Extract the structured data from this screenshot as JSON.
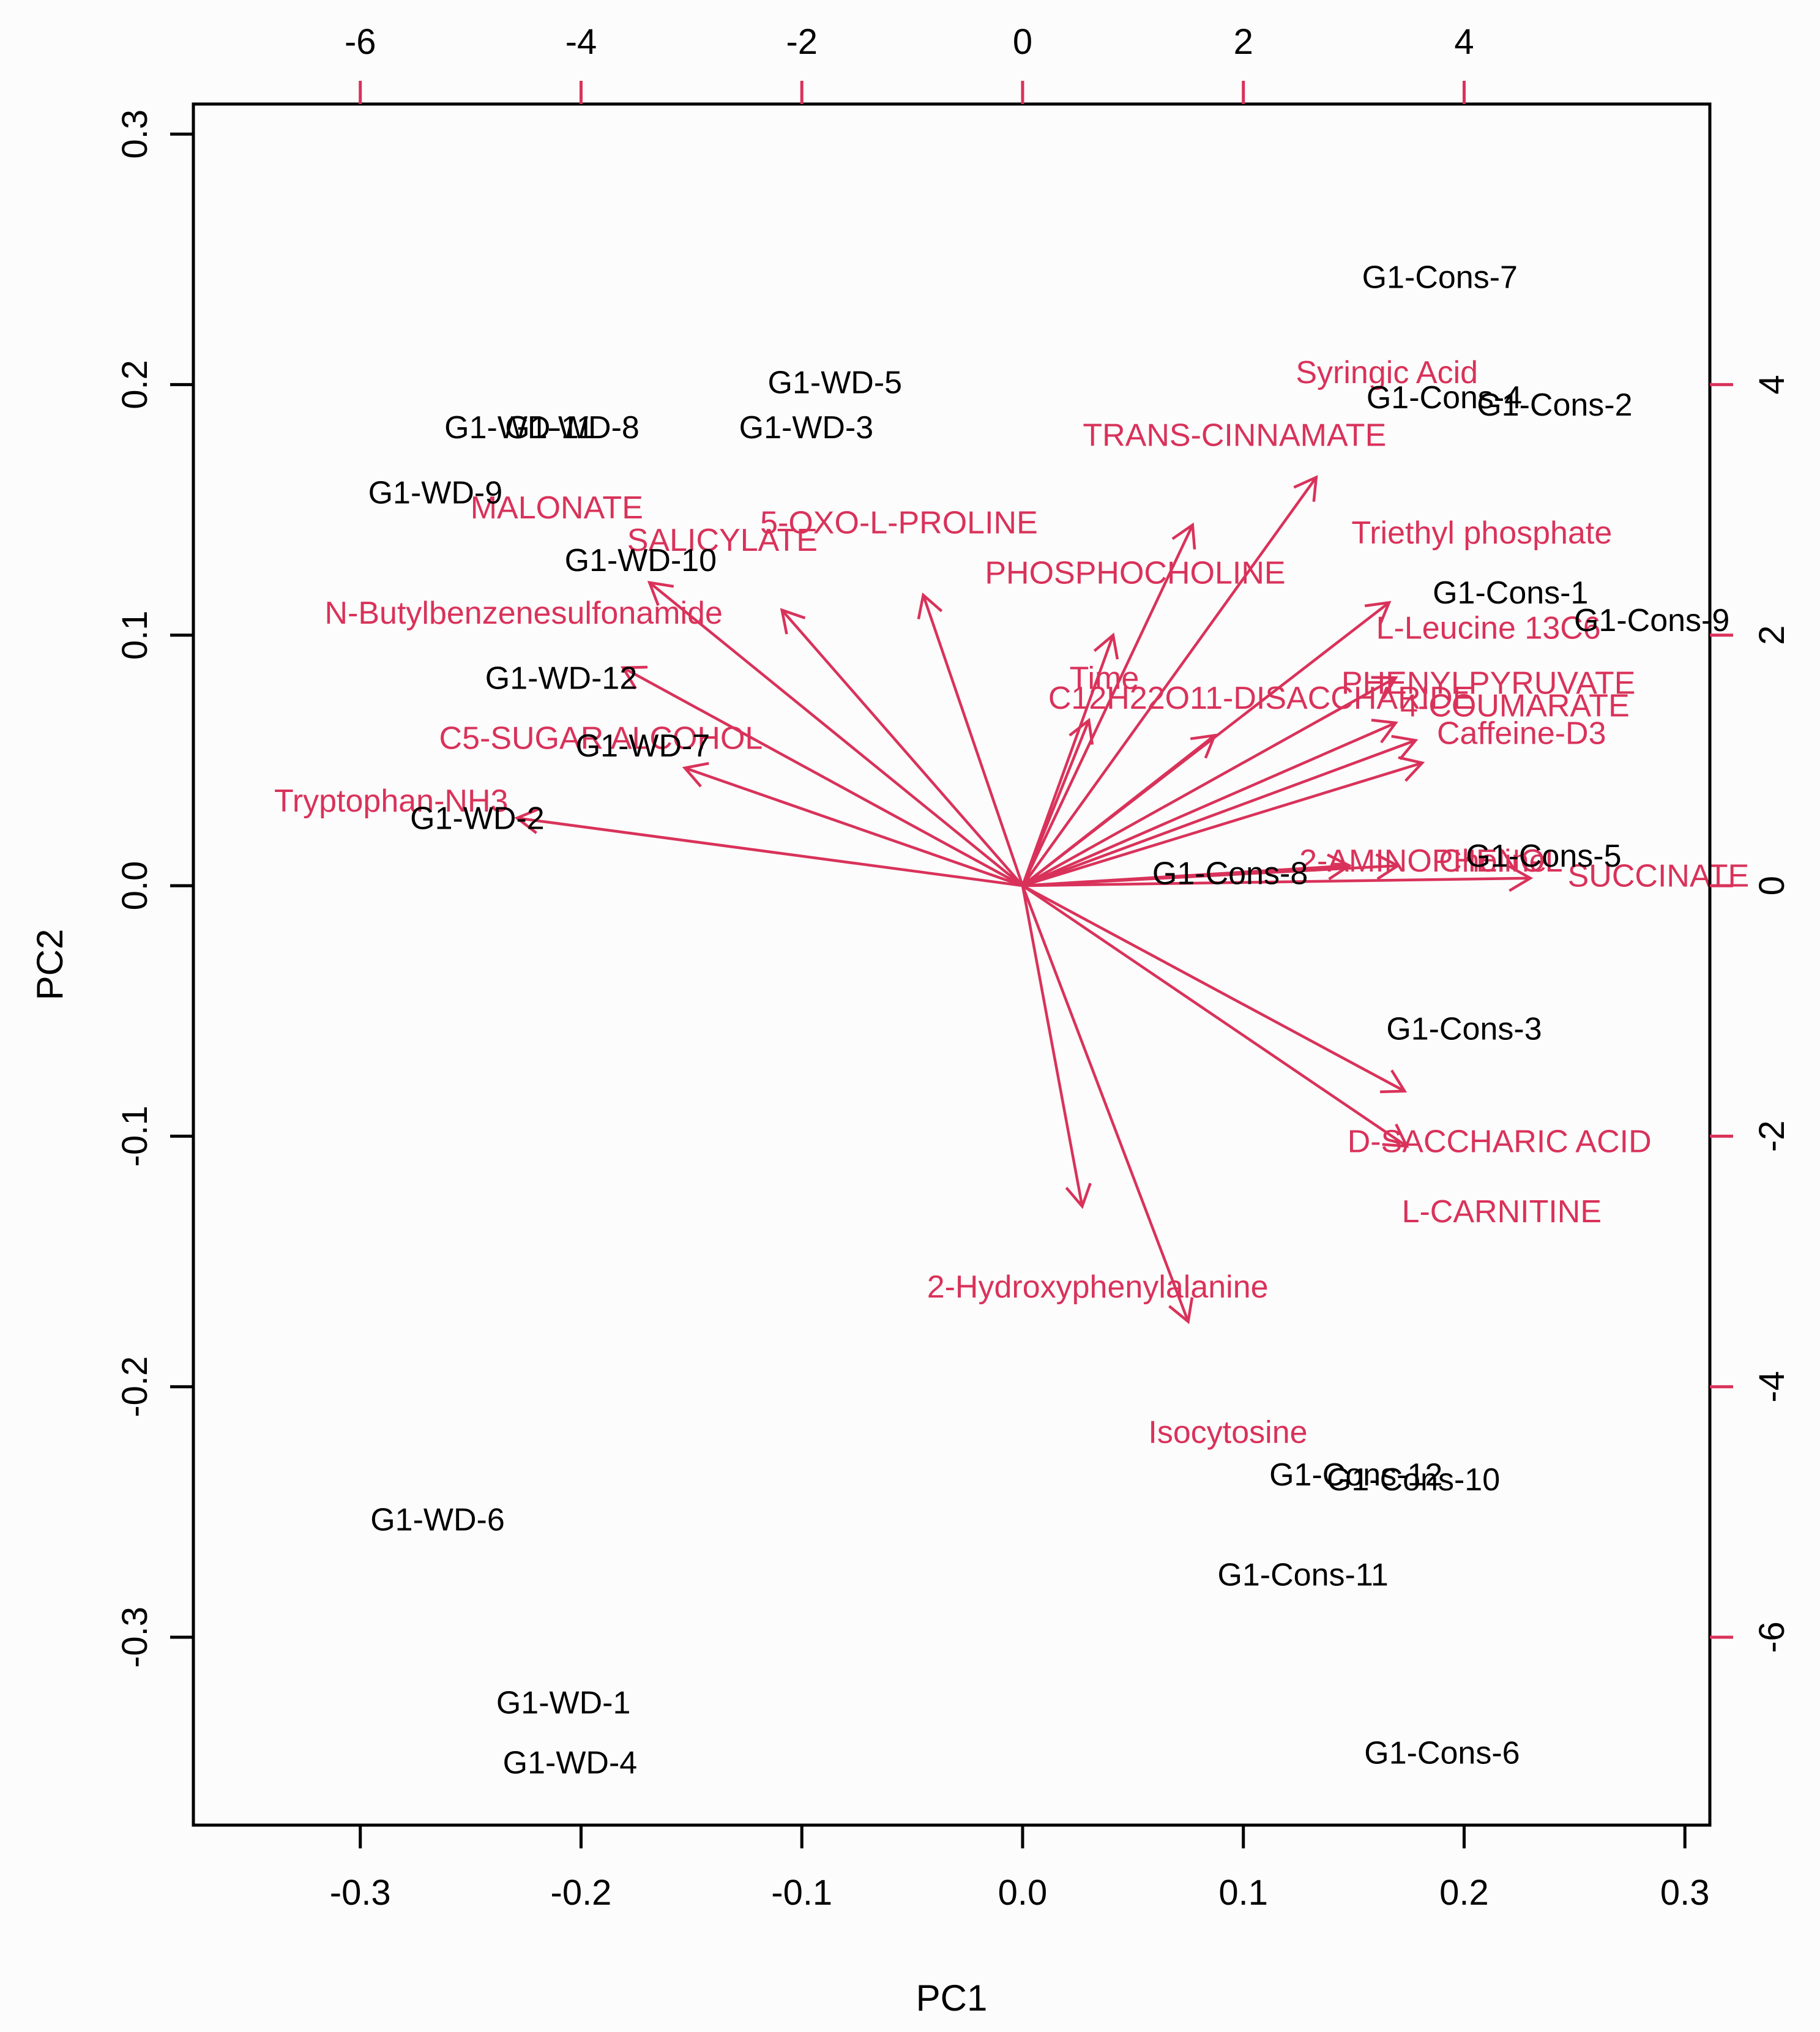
{
  "chart_data": {
    "type": "biplot",
    "xlabel": "PC1",
    "ylabel": "PC2",
    "xlim": [
      -0.3756,
      0.3113
    ],
    "ylim": [
      -0.375,
      0.312
    ],
    "xticks": [
      -0.3,
      -0.2,
      -0.1,
      0.0,
      0.1,
      0.2,
      0.3
    ],
    "yticks": [
      -0.3,
      -0.2,
      -0.1,
      0.0,
      0.1,
      0.2,
      0.3
    ],
    "xtick_labels": [
      "-0.3",
      "-0.2",
      "-0.1",
      "0.0",
      "0.1",
      "0.2",
      "0.3"
    ],
    "ytick_labels": [
      "-0.3",
      "-0.2",
      "-0.1",
      "0.0",
      "0.1",
      "0.2",
      "0.3"
    ],
    "top_axis_ticks": [
      -6,
      -4,
      -2,
      0,
      2,
      4
    ],
    "top_axis_labels": [
      "-6",
      "-4",
      "-2",
      "0",
      "2",
      "4"
    ],
    "right_axis_ticks": [
      -6,
      -4,
      -2,
      0,
      2,
      4
    ],
    "right_axis_labels": [
      "-6",
      "-4",
      "-2",
      "0",
      "2",
      "4"
    ],
    "loading_scale": 0.05,
    "colors": {
      "observations": "#000000",
      "variables": "#d9325a",
      "background": "#fcfcfc"
    },
    "observations": [
      {
        "name": "G1-Cons-7",
        "x": 0.189,
        "y": 0.243
      },
      {
        "name": "G1-Cons-4",
        "x": 0.191,
        "y": 0.195
      },
      {
        "name": "G1-Cons-2",
        "x": 0.241,
        "y": 0.192
      },
      {
        "name": "G1-WD-5",
        "x": -0.085,
        "y": 0.201
      },
      {
        "name": "G1-WD-11",
        "x": -0.228,
        "y": 0.183
      },
      {
        "name": "G1-WD-8",
        "x": -0.204,
        "y": 0.183
      },
      {
        "name": "G1-WD-3",
        "x": -0.098,
        "y": 0.183
      },
      {
        "name": "G1-WD-9",
        "x": -0.266,
        "y": 0.157
      },
      {
        "name": "G1-WD-10",
        "x": -0.173,
        "y": 0.13
      },
      {
        "name": "G1-Cons-1",
        "x": 0.221,
        "y": 0.117
      },
      {
        "name": "G1-Cons-9",
        "x": 0.285,
        "y": 0.106
      },
      {
        "name": "G1-WD-12",
        "x": -0.209,
        "y": 0.083
      },
      {
        "name": "G1-WD-7",
        "x": -0.172,
        "y": 0.056
      },
      {
        "name": "G1-WD-2",
        "x": -0.247,
        "y": 0.027
      },
      {
        "name": "G1-Cons-5",
        "x": 0.236,
        "y": 0.012
      },
      {
        "name": "G1-Cons-8",
        "x": 0.094,
        "y": 0.005
      },
      {
        "name": "G1-Cons-3",
        "x": 0.2,
        "y": -0.057
      },
      {
        "name": "G1-Cons-12",
        "x": 0.151,
        "y": -0.235
      },
      {
        "name": "G1-Cons-10",
        "x": 0.177,
        "y": -0.237
      },
      {
        "name": "G1-WD-6",
        "x": -0.265,
        "y": -0.253
      },
      {
        "name": "G1-Cons-11",
        "x": 0.127,
        "y": -0.275
      },
      {
        "name": "G1-WD-1",
        "x": -0.208,
        "y": -0.326
      },
      {
        "name": "G1-WD-4",
        "x": -0.205,
        "y": -0.35
      },
      {
        "name": "G1-Cons-6",
        "x": 0.19,
        "y": -0.346
      }
    ],
    "variables": [
      {
        "name": "Syringic Acid",
        "x": 0.165,
        "y": 0.205,
        "tip_x": 0.133,
        "tip_y": 0.163
      },
      {
        "name": "TRANS-CINNAMATE",
        "x": 0.096,
        "y": 0.18,
        "tip_x": 0.077,
        "tip_y": 0.144
      },
      {
        "name": "MALONATE",
        "x": -0.211,
        "y": 0.151,
        "tip_x": -0.169,
        "tip_y": 0.121
      },
      {
        "name": "5-OXO-L-PROLINE",
        "x": -0.056,
        "y": 0.145,
        "tip_x": -0.045,
        "tip_y": 0.116
      },
      {
        "name": "SALICYLATE",
        "x": -0.136,
        "y": 0.138,
        "tip_x": -0.109,
        "tip_y": 0.11
      },
      {
        "name": "Triethyl phosphate",
        "x": 0.208,
        "y": 0.141,
        "tip_x": 0.166,
        "tip_y": 0.113
      },
      {
        "name": "PHOSPHOCHOLINE",
        "x": 0.051,
        "y": 0.125,
        "tip_x": 0.041,
        "tip_y": 0.1
      },
      {
        "name": "N-Butylbenzenesulfonamide",
        "x": -0.226,
        "y": 0.109,
        "tip_x": -0.181,
        "tip_y": 0.087
      },
      {
        "name": "L-Leucine 13C6",
        "x": 0.211,
        "y": 0.103,
        "tip_x": 0.169,
        "tip_y": 0.083
      },
      {
        "name": "PHENYLPYRUVATE",
        "x": 0.211,
        "y": 0.081,
        "tip_x": 0.169,
        "tip_y": 0.065
      },
      {
        "name": "Time",
        "x": 0.037,
        "y": 0.083,
        "tip_x": 0.03,
        "tip_y": 0.066
      },
      {
        "name": "C12H22O11-DISACCHARIDE",
        "x": 0.108,
        "y": 0.075,
        "tip_x": 0.087,
        "tip_y": 0.06
      },
      {
        "name": "4-COUMARATE",
        "x": 0.223,
        "y": 0.072,
        "tip_x": 0.178,
        "tip_y": 0.058
      },
      {
        "name": "Caffeine-D3",
        "x": 0.226,
        "y": 0.061,
        "tip_x": 0.181,
        "tip_y": 0.049
      },
      {
        "name": "C5-SUGAR ALCOHOL",
        "x": -0.191,
        "y": 0.059,
        "tip_x": -0.153,
        "tip_y": 0.047
      },
      {
        "name": "Tryptophan-NH3",
        "x": -0.286,
        "y": 0.034,
        "tip_x": -0.229,
        "tip_y": 0.027
      },
      {
        "name": "2-AMINOPHENOL",
        "x": 0.185,
        "y": 0.01,
        "tip_x": 0.148,
        "tip_y": 0.008
      },
      {
        "name": "Choline",
        "x": 0.213,
        "y": 0.01,
        "tip_x": 0.17,
        "tip_y": 0.008
      },
      {
        "name": "SUCCINATE",
        "x": 0.288,
        "y": 0.004,
        "tip_x": 0.23,
        "tip_y": 0.003
      },
      {
        "name": "D-SACCHARIC ACID",
        "x": 0.216,
        "y": -0.102,
        "tip_x": 0.173,
        "tip_y": -0.082
      },
      {
        "name": "L-CARNITINE",
        "x": 0.217,
        "y": -0.13,
        "tip_x": 0.174,
        "tip_y": -0.104
      },
      {
        "name": "2-Hydroxyphenylalanine",
        "x": 0.034,
        "y": -0.16,
        "tip_x": 0.027,
        "tip_y": -0.128
      },
      {
        "name": "Isocytosine",
        "x": 0.093,
        "y": -0.218,
        "tip_x": 0.075,
        "tip_y": -0.174
      }
    ]
  }
}
